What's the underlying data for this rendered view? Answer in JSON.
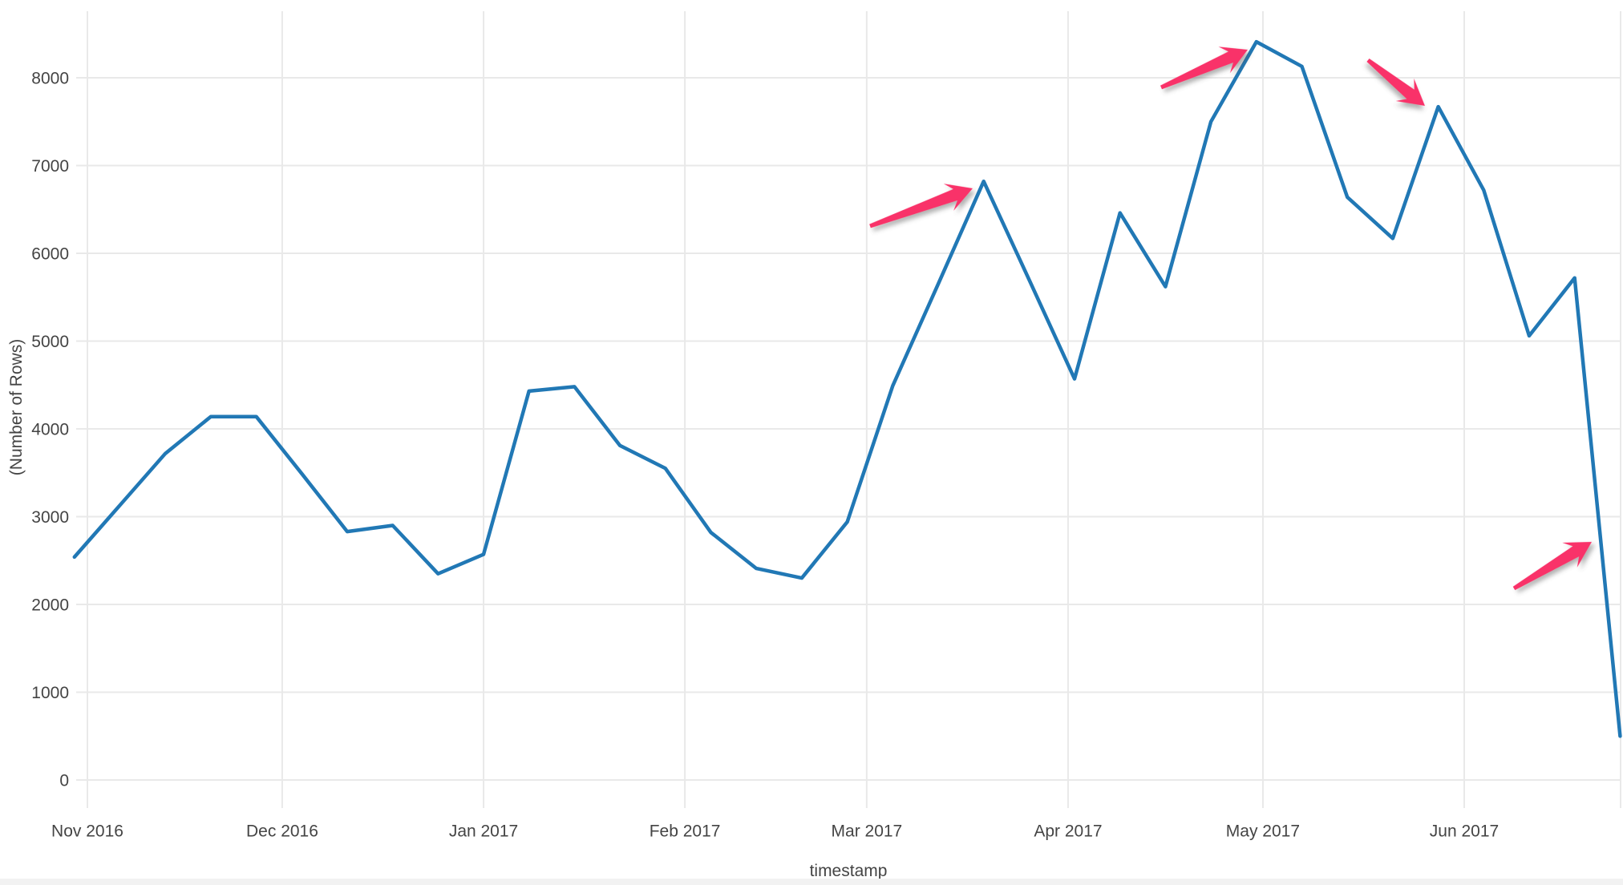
{
  "chart_data": {
    "type": "line",
    "title": "",
    "xlabel": "timestamp",
    "ylabel": "(Number of Rows)",
    "grid": true,
    "legend": "none",
    "line_color": "#2178b5",
    "arrow_color": "#f93269",
    "ylim": [
      -300,
      8760
    ],
    "y_ticks": [
      0,
      1000,
      2000,
      3000,
      4000,
      5000,
      6000,
      7000,
      8000
    ],
    "x_ticks": [
      {
        "label": "Nov 2016",
        "date": "2016-11-01"
      },
      {
        "label": "Dec 2016",
        "date": "2016-12-01"
      },
      {
        "label": "Jan 2017",
        "date": "2017-01-01"
      },
      {
        "label": "Feb 2017",
        "date": "2017-02-01"
      },
      {
        "label": "Mar 2017",
        "date": "2017-03-01"
      },
      {
        "label": "Apr 2017",
        "date": "2017-04-01"
      },
      {
        "label": "May 2017",
        "date": "2017-05-01"
      },
      {
        "label": "Jun 2017",
        "date": "2017-06-01"
      }
    ],
    "series": [
      {
        "name": "Number of Rows",
        "x": [
          "2016-10-30",
          "2016-11-06",
          "2016-11-13",
          "2016-11-20",
          "2016-11-27",
          "2016-12-04",
          "2016-12-11",
          "2016-12-18",
          "2016-12-25",
          "2017-01-01",
          "2017-01-08",
          "2017-01-15",
          "2017-01-22",
          "2017-01-29",
          "2017-02-05",
          "2017-02-12",
          "2017-02-19",
          "2017-02-26",
          "2017-03-05",
          "2017-03-12",
          "2017-03-19",
          "2017-03-26",
          "2017-04-02",
          "2017-04-09",
          "2017-04-16",
          "2017-04-23",
          "2017-04-30",
          "2017-05-07",
          "2017-05-14",
          "2017-05-21",
          "2017-05-28",
          "2017-06-04",
          "2017-06-11",
          "2017-06-18",
          "2017-06-25"
        ],
        "values": [
          2540,
          3130,
          3720,
          4140,
          4140,
          3490,
          2830,
          2900,
          2350,
          2570,
          4430,
          4480,
          3810,
          3550,
          2820,
          2410,
          2300,
          2940,
          4490,
          5650,
          6820,
          5700,
          4570,
          6460,
          5620,
          7500,
          8410,
          8130,
          6640,
          6170,
          7670,
          6720,
          5060,
          5720,
          500
        ]
      }
    ],
    "annotations": [
      {
        "name": "arrow-1",
        "points_to": "peak 2017-03-19 ≈ 6820",
        "tail": [
          1085,
          282
        ],
        "tip": [
          1213,
          235
        ]
      },
      {
        "name": "arrow-2",
        "points_to": "peak 2017-04-30 ≈ 8410",
        "tail": [
          1448,
          109
        ],
        "tip": [
          1556,
          62
        ]
      },
      {
        "name": "arrow-3",
        "points_to": "peak 2017-05-28 ≈ 7670",
        "tail": [
          1706,
          75
        ],
        "tip": [
          1777,
          132
        ]
      },
      {
        "name": "arrow-4",
        "points_to": "final drop 2017-06-25 ≈ 500",
        "tail": [
          1888,
          734
        ],
        "tip": [
          1985,
          676
        ]
      }
    ]
  }
}
